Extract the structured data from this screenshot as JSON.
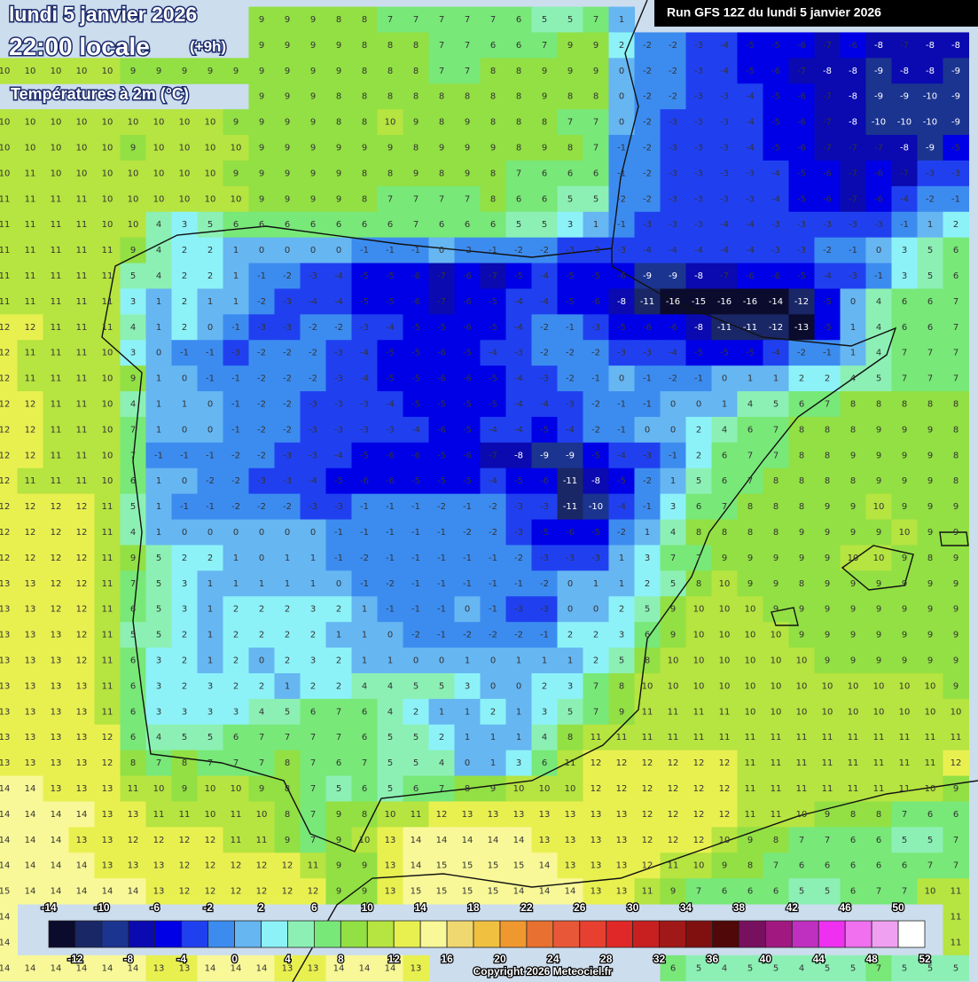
{
  "header": {
    "date": "lundi 5 janvier 2026",
    "time": "22:00 locale",
    "offset": "(+9h)",
    "variable": "Températures à 2m (°C)",
    "run": "Run GFS 12Z du lundi 5 janvier 2026"
  },
  "footer": {
    "copyright": "Copyright 2026 Meteociel.fr"
  },
  "legend": {
    "labels": [
      -14,
      -12,
      -10,
      -8,
      -6,
      -4,
      -2,
      0,
      2,
      4,
      6,
      8,
      10,
      12,
      14,
      16,
      18,
      20,
      22,
      24,
      26,
      28,
      30,
      32,
      34,
      36,
      38,
      40,
      42,
      44,
      46,
      48,
      50,
      52
    ],
    "colors": [
      "#0b0b2e",
      "#1a2766",
      "#1b3490",
      "#0a0ab0",
      "#0000e6",
      "#2040f0",
      "#3c8cf0",
      "#66b6f2",
      "#8cf2f8",
      "#8cf0b4",
      "#78e878",
      "#92e044",
      "#b6e440",
      "#e8f050",
      "#f8f898",
      "#f0d870",
      "#f0c040",
      "#f09830",
      "#e87030",
      "#e85838",
      "#e84030",
      "#e02828",
      "#c82020",
      "#a01818",
      "#801010",
      "#500808",
      "#781060",
      "#a01880",
      "#c030c0",
      "#f030f0",
      "#f070f0",
      "#f0a0f0",
      "#ffffff"
    ]
  },
  "grid": {
    "rows": [
      [
        null,
        null,
        null,
        null,
        null,
        null,
        null,
        null,
        null,
        null,
        9,
        9,
        9,
        8,
        8,
        7,
        7,
        7,
        7,
        7,
        6,
        5,
        5,
        7,
        1,
        null,
        null,
        null,
        null,
        null,
        null,
        null,
        null,
        null,
        null,
        null,
        null,
        null
      ],
      [
        null,
        null,
        null,
        null,
        null,
        null,
        null,
        null,
        null,
        null,
        9,
        9,
        9,
        9,
        8,
        8,
        8,
        7,
        7,
        6,
        6,
        7,
        9,
        9,
        2,
        -2,
        -2,
        -3,
        -4,
        -5,
        -5,
        -6,
        -7,
        -6,
        -8,
        -7,
        -8,
        -8
      ],
      [
        10,
        10,
        10,
        10,
        10,
        9,
        9,
        9,
        9,
        9,
        9,
        9,
        9,
        9,
        8,
        8,
        8,
        7,
        7,
        8,
        8,
        9,
        9,
        9,
        0,
        -2,
        -2,
        -3,
        -4,
        -5,
        -6,
        -7,
        -8,
        -8,
        -9,
        -8,
        -8,
        -9
      ],
      [
        null,
        null,
        null,
        null,
        null,
        null,
        null,
        null,
        null,
        null,
        9,
        9,
        9,
        8,
        8,
        8,
        8,
        8,
        8,
        8,
        8,
        9,
        8,
        8,
        0,
        -2,
        -2,
        -3,
        -3,
        -4,
        -5,
        -6,
        -7,
        -8,
        -9,
        -9,
        -10,
        -9
      ],
      [
        10,
        10,
        10,
        10,
        10,
        10,
        10,
        10,
        10,
        9,
        9,
        9,
        9,
        8,
        8,
        10,
        9,
        8,
        9,
        8,
        8,
        8,
        7,
        7,
        0,
        -2,
        -3,
        -3,
        -3,
        -4,
        -5,
        -6,
        -7,
        -8,
        -10,
        -10,
        -10,
        -9
      ],
      [
        10,
        10,
        10,
        10,
        10,
        9,
        10,
        10,
        10,
        10,
        9,
        9,
        9,
        9,
        9,
        9,
        8,
        9,
        9,
        9,
        8,
        9,
        8,
        7,
        -1,
        -2,
        -3,
        -3,
        -3,
        -4,
        -5,
        -6,
        -7,
        -7,
        -7,
        -8,
        -9,
        -5
      ],
      [
        10,
        11,
        10,
        10,
        10,
        10,
        10,
        10,
        10,
        9,
        9,
        9,
        9,
        9,
        8,
        8,
        9,
        8,
        9,
        8,
        7,
        6,
        6,
        6,
        -1,
        -2,
        -3,
        -3,
        -3,
        -3,
        -4,
        -5,
        -6,
        -7,
        -6,
        -7,
        -3,
        -3
      ],
      [
        11,
        11,
        11,
        11,
        10,
        10,
        10,
        10,
        10,
        10,
        9,
        9,
        9,
        9,
        8,
        7,
        7,
        7,
        7,
        8,
        6,
        6,
        5,
        5,
        -2,
        -2,
        -3,
        -3,
        -3,
        -3,
        -4,
        -5,
        -6,
        -7,
        -6,
        -4,
        -2,
        -1
      ],
      [
        11,
        11,
        11,
        11,
        10,
        10,
        4,
        3,
        5,
        6,
        6,
        6,
        6,
        6,
        6,
        6,
        7,
        6,
        6,
        6,
        5,
        5,
        3,
        1,
        -1,
        -3,
        -3,
        -3,
        -4,
        -4,
        -3,
        -3,
        -3,
        -3,
        -3,
        -1,
        1,
        2
      ],
      [
        11,
        11,
        11,
        11,
        11,
        9,
        4,
        2,
        2,
        1,
        0,
        0,
        0,
        0,
        -1,
        -1,
        -1,
        0,
        -2,
        -1,
        -2,
        -2,
        -3,
        -3,
        -3,
        -4,
        -4,
        -4,
        -4,
        -4,
        -3,
        -3,
        -2,
        -1,
        0,
        3,
        5,
        6
      ],
      [
        11,
        11,
        11,
        11,
        11,
        5,
        4,
        2,
        2,
        1,
        -1,
        -2,
        -3,
        -4,
        -5,
        -5,
        -6,
        -7,
        -6,
        -7,
        -5,
        -4,
        -5,
        -5,
        -6,
        -9,
        -9,
        -8,
        -7,
        -6,
        -6,
        -5,
        -4,
        -3,
        -1,
        3,
        5,
        6
      ],
      [
        11,
        11,
        11,
        11,
        11,
        3,
        1,
        2,
        1,
        1,
        -2,
        -3,
        -4,
        -4,
        -5,
        -5,
        -6,
        -7,
        -6,
        -5,
        -4,
        -4,
        -5,
        -6,
        -8,
        -11,
        -16,
        -15,
        -16,
        -16,
        -14,
        -12,
        -5,
        0,
        4,
        6,
        6,
        7
      ],
      [
        12,
        12,
        11,
        11,
        11,
        4,
        1,
        2,
        0,
        -1,
        -3,
        -3,
        -2,
        -2,
        -3,
        -4,
        -5,
        -5,
        -6,
        -5,
        -4,
        -2,
        -1,
        -3,
        -5,
        -6,
        -6,
        -8,
        -11,
        -11,
        -12,
        -13,
        -5,
        1,
        4,
        6,
        6,
        7
      ],
      [
        12,
        11,
        11,
        11,
        10,
        3,
        0,
        -1,
        -1,
        -3,
        -2,
        -2,
        -2,
        -3,
        -4,
        -5,
        -5,
        -6,
        -5,
        -4,
        -3,
        -2,
        -2,
        -2,
        -3,
        -3,
        -4,
        -5,
        -5,
        -5,
        -4,
        -2,
        -1,
        1,
        4,
        7,
        7,
        7
      ],
      [
        12,
        11,
        11,
        11,
        10,
        9,
        1,
        0,
        -1,
        -1,
        -2,
        -2,
        -2,
        -3,
        -4,
        -5,
        -5,
        -6,
        -6,
        -5,
        -4,
        -3,
        -2,
        -1,
        0,
        -1,
        -2,
        -1,
        0,
        1,
        1,
        2,
        2,
        4,
        5,
        7,
        7,
        7
      ],
      [
        12,
        12,
        11,
        11,
        10,
        4,
        1,
        1,
        0,
        -1,
        -2,
        -2,
        -3,
        -3,
        -3,
        -4,
        -5,
        -5,
        -5,
        -5,
        -4,
        -4,
        -3,
        -2,
        -1,
        -1,
        0,
        0,
        1,
        4,
        5,
        6,
        7,
        8,
        8,
        8,
        8,
        8
      ],
      [
        12,
        12,
        11,
        11,
        10,
        7,
        1,
        0,
        0,
        -1,
        -2,
        -2,
        -3,
        -3,
        -3,
        -3,
        -4,
        -6,
        -5,
        -4,
        -4,
        -5,
        -4,
        -2,
        -1,
        0,
        0,
        2,
        4,
        6,
        7,
        8,
        8,
        8,
        9,
        9,
        9,
        8
      ],
      [
        12,
        12,
        11,
        11,
        10,
        7,
        -1,
        -1,
        -1,
        -2,
        -2,
        -3,
        -3,
        -4,
        -5,
        -6,
        -6,
        -5,
        -6,
        -7,
        -8,
        -9,
        -9,
        -5,
        -4,
        -3,
        -1,
        2,
        6,
        7,
        7,
        8,
        8,
        9,
        9,
        9,
        9,
        8
      ],
      [
        12,
        11,
        11,
        11,
        10,
        6,
        1,
        0,
        -2,
        -2,
        -3,
        -3,
        -4,
        -5,
        -6,
        -6,
        -5,
        -5,
        -5,
        -4,
        -5,
        -6,
        -11,
        -8,
        -5,
        -2,
        1,
        5,
        6,
        7,
        8,
        8,
        8,
        8,
        9,
        9,
        9,
        8
      ],
      [
        12,
        12,
        12,
        12,
        11,
        5,
        1,
        -1,
        -1,
        -2,
        -2,
        -2,
        -3,
        -3,
        -1,
        -1,
        -1,
        -2,
        -1,
        -2,
        -3,
        -3,
        -11,
        -10,
        -4,
        -1,
        3,
        6,
        7,
        8,
        8,
        8,
        9,
        9,
        10,
        9,
        9,
        9
      ],
      [
        12,
        12,
        12,
        12,
        11,
        4,
        1,
        0,
        0,
        0,
        0,
        0,
        0,
        -1,
        -1,
        -1,
        -1,
        -1,
        -2,
        -2,
        -3,
        -5,
        -6,
        -5,
        -2,
        1,
        4,
        8,
        8,
        8,
        8,
        9,
        9,
        9,
        9,
        10,
        9,
        9
      ],
      [
        12,
        12,
        12,
        12,
        11,
        9,
        5,
        2,
        2,
        1,
        0,
        1,
        1,
        -1,
        -2,
        -1,
        -1,
        -1,
        -1,
        -1,
        -2,
        -3,
        -3,
        -3,
        1,
        3,
        7,
        7,
        9,
        9,
        9,
        9,
        9,
        10,
        10,
        9,
        8,
        9
      ],
      [
        13,
        13,
        12,
        12,
        11,
        7,
        5,
        3,
        1,
        1,
        1,
        1,
        1,
        0,
        -1,
        -2,
        -1,
        -1,
        -1,
        -1,
        -1,
        -2,
        0,
        1,
        1,
        2,
        5,
        8,
        10,
        9,
        9,
        8,
        9,
        9,
        9,
        9,
        9,
        9
      ],
      [
        13,
        13,
        12,
        12,
        11,
        6,
        5,
        3,
        1,
        2,
        2,
        2,
        3,
        2,
        1,
        -1,
        -1,
        -1,
        0,
        -1,
        -3,
        -3,
        0,
        0,
        2,
        5,
        9,
        10,
        10,
        10,
        9,
        9,
        9,
        9,
        9,
        9,
        9,
        9
      ],
      [
        13,
        13,
        13,
        12,
        11,
        5,
        5,
        2,
        1,
        2,
        2,
        2,
        2,
        1,
        1,
        0,
        -2,
        -1,
        -2,
        -2,
        -2,
        -1,
        2,
        2,
        3,
        6,
        9,
        10,
        10,
        10,
        10,
        9,
        9,
        9,
        9,
        9,
        9,
        9
      ],
      [
        13,
        13,
        13,
        12,
        11,
        6,
        3,
        2,
        1,
        2,
        0,
        2,
        3,
        2,
        1,
        1,
        0,
        0,
        1,
        0,
        1,
        1,
        1,
        2,
        5,
        8,
        10,
        10,
        10,
        10,
        10,
        10,
        9,
        9,
        9,
        9,
        9,
        9
      ],
      [
        13,
        13,
        13,
        13,
        11,
        6,
        3,
        2,
        3,
        2,
        2,
        1,
        2,
        2,
        4,
        4,
        5,
        5,
        3,
        0,
        0,
        2,
        3,
        7,
        8,
        10,
        10,
        10,
        10,
        10,
        10,
        10,
        10,
        10,
        10,
        10,
        10,
        9
      ],
      [
        13,
        13,
        13,
        13,
        11,
        6,
        3,
        3,
        3,
        3,
        4,
        5,
        6,
        7,
        6,
        4,
        2,
        1,
        1,
        2,
        1,
        3,
        5,
        7,
        9,
        11,
        11,
        11,
        11,
        10,
        10,
        10,
        10,
        10,
        10,
        10,
        10,
        10
      ],
      [
        13,
        13,
        13,
        13,
        12,
        6,
        4,
        5,
        5,
        6,
        7,
        7,
        7,
        7,
        6,
        5,
        5,
        2,
        1,
        1,
        1,
        4,
        8,
        11,
        11,
        11,
        11,
        11,
        11,
        11,
        11,
        11,
        11,
        11,
        11,
        11,
        11,
        11
      ],
      [
        13,
        13,
        13,
        13,
        12,
        8,
        7,
        8,
        7,
        7,
        7,
        8,
        7,
        6,
        7,
        5,
        5,
        4,
        0,
        1,
        3,
        6,
        11,
        12,
        12,
        12,
        12,
        12,
        12,
        11,
        11,
        11,
        11,
        11,
        11,
        11,
        11,
        12
      ],
      [
        14,
        14,
        13,
        13,
        13,
        11,
        10,
        9,
        10,
        10,
        9,
        8,
        7,
        5,
        6,
        5,
        6,
        7,
        8,
        9,
        10,
        10,
        10,
        12,
        12,
        12,
        12,
        12,
        12,
        11,
        11,
        11,
        11,
        11,
        11,
        11,
        10,
        9
      ],
      [
        14,
        14,
        14,
        14,
        13,
        13,
        11,
        11,
        10,
        11,
        10,
        8,
        7,
        9,
        8,
        10,
        11,
        12,
        13,
        13,
        13,
        13,
        13,
        13,
        13,
        12,
        12,
        12,
        12,
        11,
        11,
        10,
        9,
        8,
        8,
        7,
        6,
        6
      ],
      [
        14,
        14,
        14,
        13,
        13,
        12,
        12,
        12,
        12,
        11,
        11,
        9,
        7,
        9,
        10,
        13,
        14,
        14,
        14,
        14,
        14,
        13,
        13,
        13,
        13,
        12,
        12,
        12,
        10,
        9,
        8,
        7,
        7,
        6,
        6,
        5,
        5,
        7
      ],
      [
        14,
        14,
        14,
        14,
        13,
        13,
        13,
        12,
        12,
        12,
        12,
        12,
        11,
        9,
        9,
        13,
        14,
        15,
        15,
        15,
        15,
        14,
        13,
        13,
        13,
        12,
        11,
        10,
        9,
        8,
        7,
        6,
        6,
        6,
        6,
        6,
        7,
        7
      ],
      [
        15,
        14,
        14,
        14,
        14,
        14,
        13,
        12,
        12,
        12,
        12,
        12,
        12,
        9,
        9,
        13,
        15,
        15,
        15,
        15,
        14,
        14,
        14,
        13,
        13,
        11,
        9,
        7,
        6,
        6,
        6,
        5,
        5,
        6,
        7,
        7,
        10,
        11
      ],
      [
        14,
        null,
        null,
        null,
        null,
        null,
        null,
        null,
        null,
        null,
        null,
        null,
        null,
        null,
        null,
        null,
        null,
        null,
        null,
        null,
        null,
        null,
        null,
        null,
        null,
        null,
        null,
        null,
        null,
        null,
        null,
        null,
        null,
        null,
        null,
        null,
        null,
        11
      ],
      [
        14,
        null,
        null,
        null,
        null,
        null,
        null,
        null,
        null,
        null,
        null,
        null,
        null,
        null,
        null,
        null,
        null,
        null,
        null,
        null,
        null,
        null,
        null,
        null,
        null,
        null,
        null,
        null,
        null,
        null,
        null,
        null,
        null,
        null,
        null,
        null,
        null,
        11
      ],
      [
        14,
        14,
        14,
        14,
        14,
        14,
        13,
        13,
        14,
        14,
        14,
        13,
        13,
        14,
        14,
        14,
        13,
        null,
        null,
        null,
        null,
        null,
        null,
        null,
        null,
        null,
        6,
        5,
        4,
        5,
        5,
        4,
        5,
        5,
        7,
        5,
        5,
        5
      ]
    ]
  }
}
